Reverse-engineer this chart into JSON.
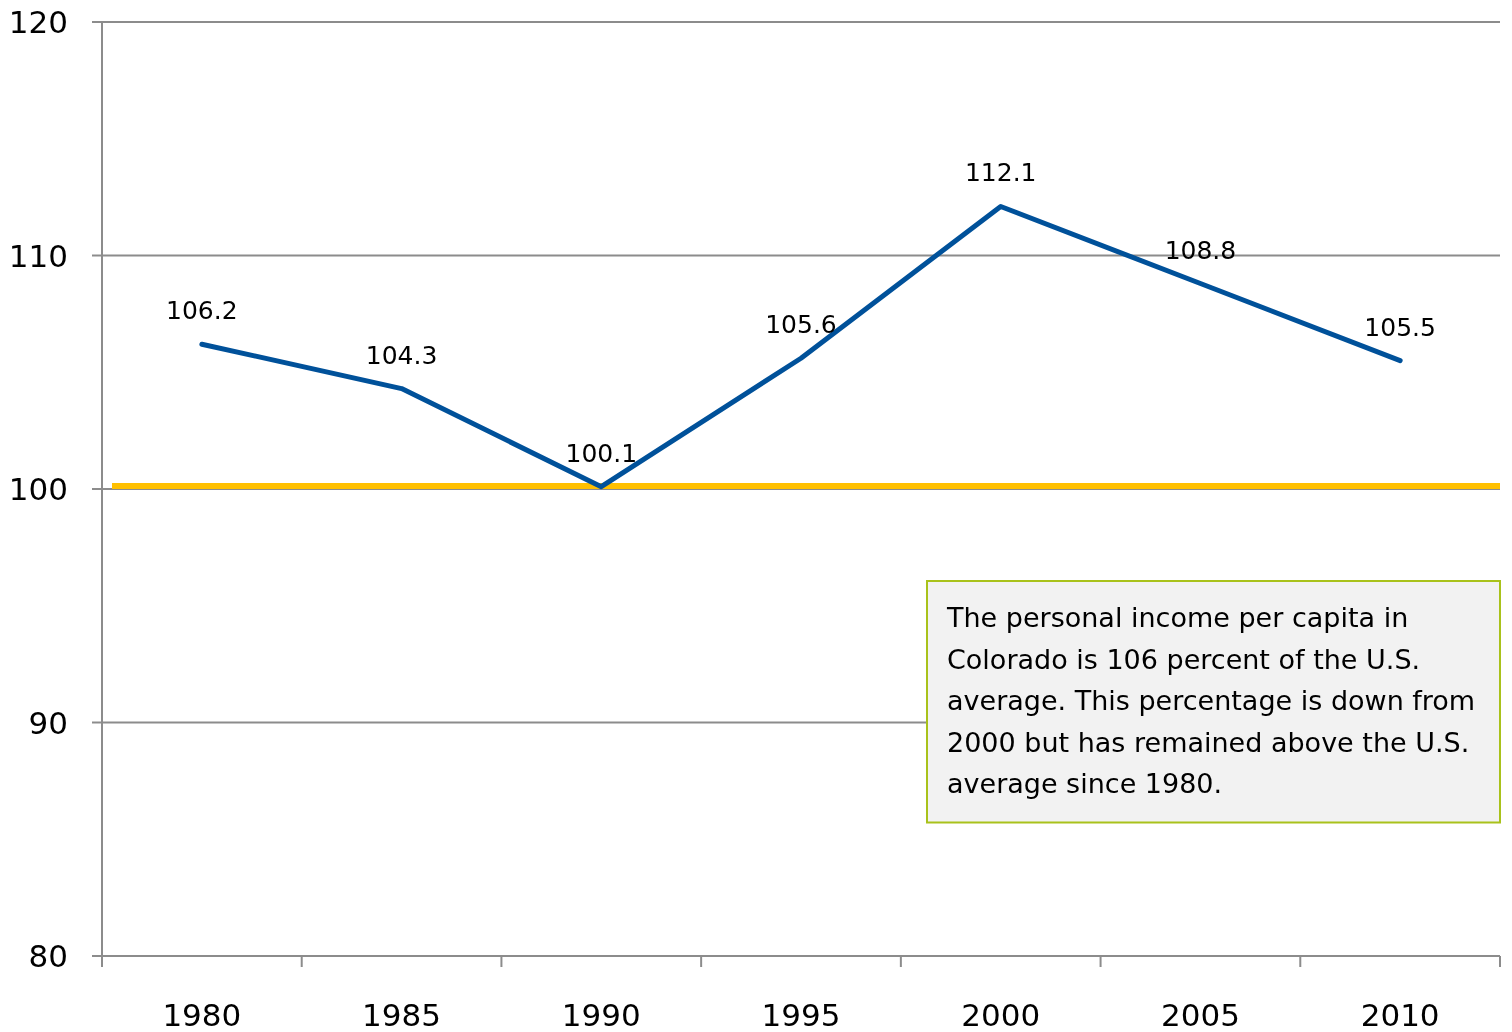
{
  "chart_data": {
    "type": "line",
    "categories": [
      "1980",
      "1985",
      "1990",
      "1995",
      "2000",
      "2005",
      "2010"
    ],
    "series": [
      {
        "color": "#00519a",
        "values": [
          106.2,
          104.3,
          100.1,
          105.6,
          112.1,
          108.8,
          105.5
        ]
      }
    ],
    "ylim": [
      80,
      120
    ],
    "yticks": [
      80,
      90,
      100,
      110,
      120
    ],
    "grid": "y",
    "data_labels": true,
    "line_style": "solid",
    "ref_lines": [
      {
        "axis": "y",
        "value": 100,
        "color": "#ffc000"
      }
    ],
    "annotations": [
      "The personal income per capita in Colorado is 106 percent of the U.S. average. This percentage is down from 2000 but has remained above the U.S. average since 1980."
    ]
  }
}
